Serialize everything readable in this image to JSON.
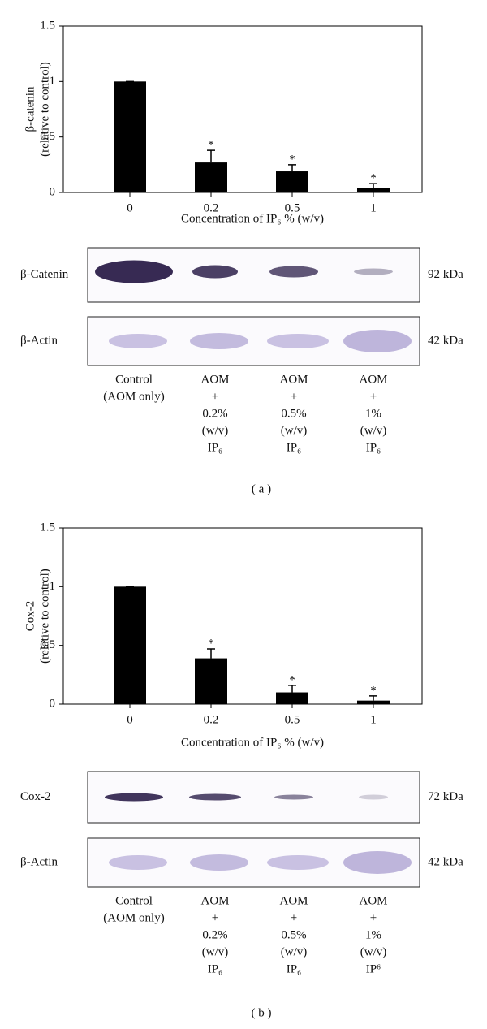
{
  "chart_data": [
    {
      "type": "bar",
      "ylabel": [
        "β-catenin",
        "(relative to control)"
      ],
      "xlabel": "Concentration of IP₆ % (w/v)",
      "categories": [
        "0",
        "0.2",
        "0.5",
        "1"
      ],
      "values": [
        1,
        0.27,
        0.19,
        0.04
      ],
      "errors": [
        0,
        0.11,
        0.06,
        0.04
      ],
      "significance": [
        null,
        "*",
        "*",
        "*"
      ],
      "color": "#000000",
      "ylim": [
        0,
        1.5
      ],
      "yticks": [
        0,
        0.5,
        1,
        1.5
      ]
    },
    {
      "type": "bar",
      "ylabel": [
        "Cox-2",
        "(relative to control)"
      ],
      "xlabel": "Concentration of IP₆ % (w/v)",
      "categories": [
        "0",
        "0.2",
        "0.5",
        "1"
      ],
      "values": [
        1,
        0.39,
        0.1,
        0.03
      ],
      "errors": [
        0,
        0.08,
        0.06,
        0.04
      ],
      "significance": [
        null,
        "*",
        "*",
        "*"
      ],
      "color": "#000000",
      "ylim": [
        0,
        1.5
      ],
      "yticks": [
        0,
        0.5,
        1,
        1.5
      ]
    }
  ],
  "panels": [
    {
      "label": "( a )",
      "rows": [
        {
          "name": "β-Catenin",
          "size": "92 kDa"
        },
        {
          "name": "β-Actin",
          "size": "42 kDa"
        }
      ],
      "lanes": [
        [
          "Control",
          "(AOM only)"
        ],
        [
          "AOM",
          "+",
          "0.2%",
          "(w/v)",
          "IP₆"
        ],
        [
          "AOM",
          "+",
          "0.5%",
          "(w/v)",
          "IP₆"
        ],
        [
          "AOM",
          "+",
          "1%",
          "(w/v)",
          "IP₆"
        ]
      ]
    },
    {
      "label": "( b )",
      "rows": [
        {
          "name": "Cox-2",
          "size": "72 kDa"
        },
        {
          "name": "β-Actin",
          "size": "42 kDa"
        }
      ],
      "lanes": [
        [
          "Control",
          "(AOM only)"
        ],
        [
          "AOM",
          "+",
          "0.2%",
          "(w/v)",
          "IP₆"
        ],
        [
          "AOM",
          "+",
          "0.5%",
          "(w/v)",
          "IP₆"
        ],
        [
          "AOM",
          "+",
          "1%",
          "(w/v)",
          "IP⁶"
        ]
      ]
    }
  ]
}
